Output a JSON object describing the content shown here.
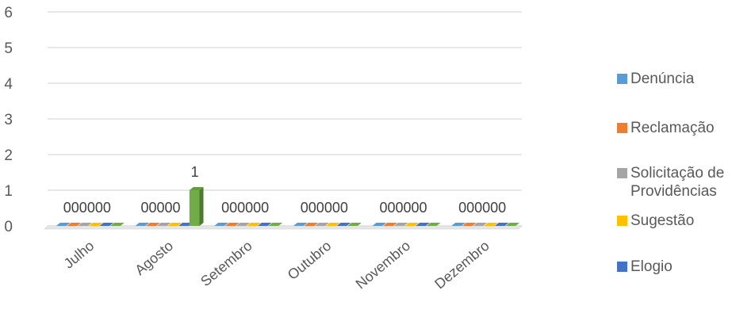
{
  "chart_data": {
    "type": "bar",
    "variant": "3d-clustered-column",
    "categories": [
      "Julho",
      "Agosto",
      "Setembro",
      "Outubro",
      "Novembro",
      "Dezembro"
    ],
    "ylim": [
      0,
      6
    ],
    "yticks": [
      "0",
      "1",
      "2",
      "3",
      "4",
      "5",
      "6"
    ],
    "grid": true,
    "legend_position": "right",
    "series": [
      {
        "name": "Denúncia",
        "color": "#5B9BD5",
        "values": [
          0,
          0,
          0,
          0,
          0,
          0
        ]
      },
      {
        "name": "Reclamação",
        "color": "#ED7D31",
        "values": [
          0,
          0,
          0,
          0,
          0,
          0
        ]
      },
      {
        "name": "Solicitação de Providências",
        "color": "#A5A5A5",
        "values": [
          0,
          0,
          0,
          0,
          0,
          0
        ]
      },
      {
        "name": "Sugestão",
        "color": "#FFC000",
        "values": [
          0,
          0,
          0,
          0,
          0,
          0
        ]
      },
      {
        "name": "Elogio",
        "color": "#4472C4",
        "values": [
          0,
          0,
          0,
          0,
          0,
          0
        ]
      },
      {
        "name": "",
        "color": "#70AD47",
        "values": [
          0,
          1,
          0,
          0,
          0,
          0
        ]
      }
    ],
    "data_labels": [
      "000000",
      "00000",
      "000000",
      "000000",
      "000000",
      "000000"
    ],
    "bar_labels": [
      {
        "category": "Agosto",
        "text": "1"
      }
    ]
  }
}
